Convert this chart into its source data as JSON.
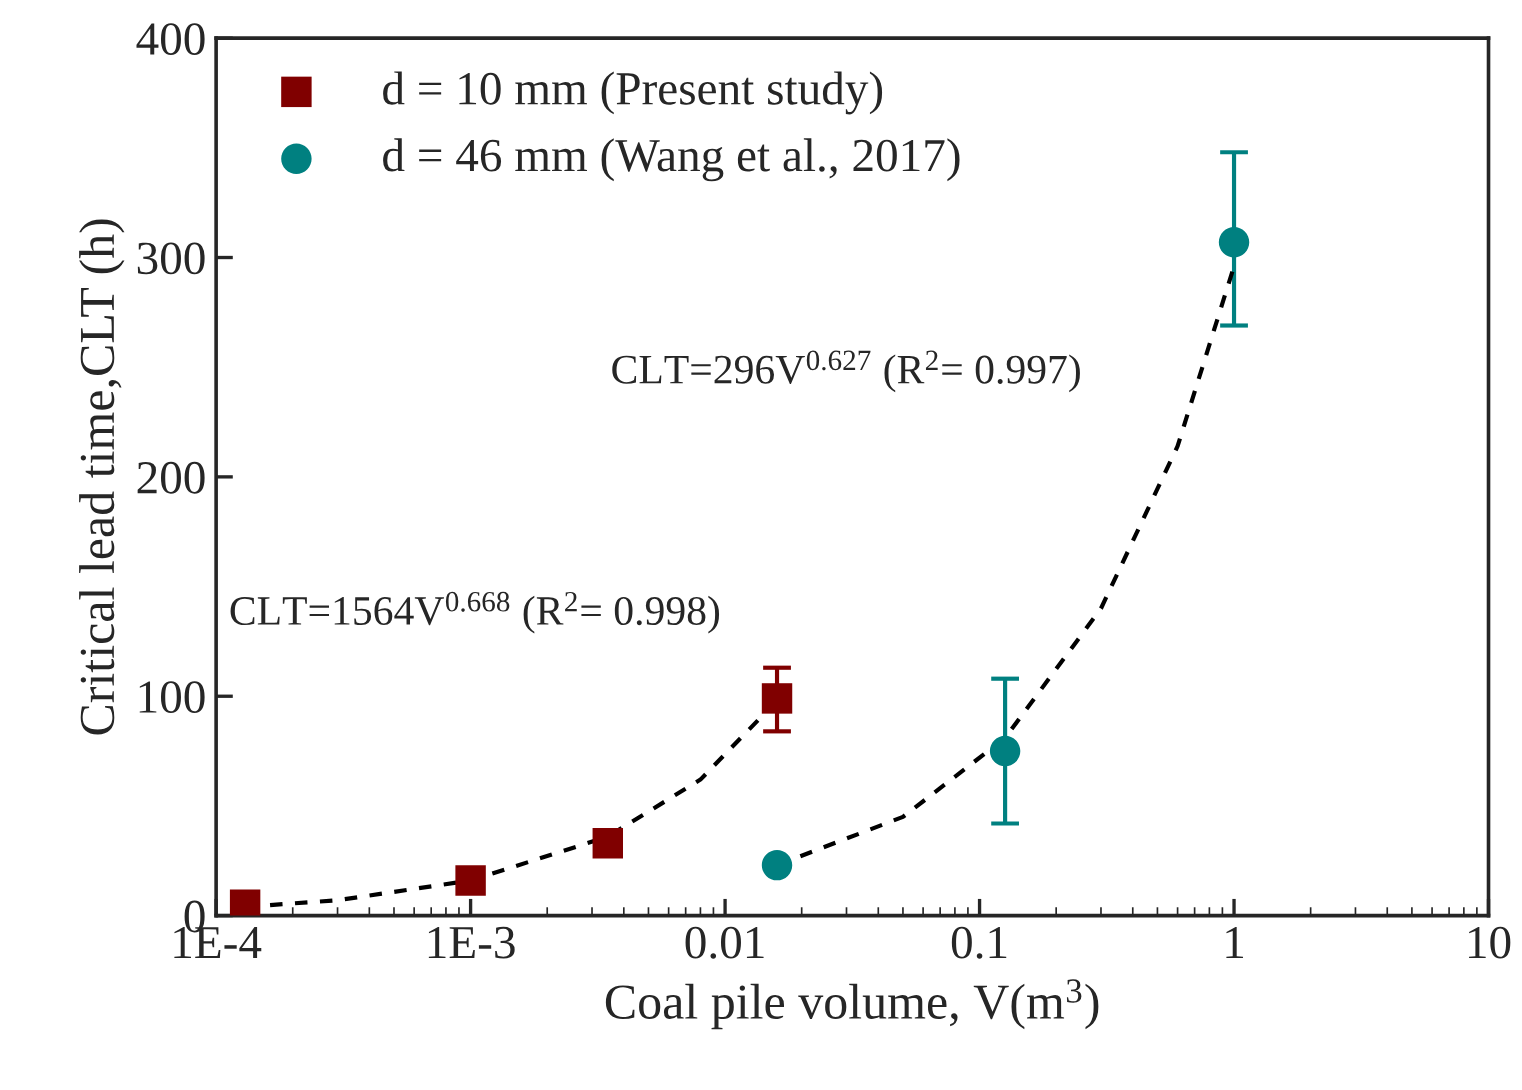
{
  "chart_data": {
    "type": "scatter",
    "xlabel": "Coal pile volume, V(m$^{3}$)",
    "ylabel": "Critical lead time,CLT (h)",
    "log": "x",
    "xlim": [
      0.0001,
      10
    ],
    "xticks": [
      {
        "value": 0.0001,
        "label": "1E-4"
      },
      {
        "value": 0.001,
        "label": "1E-3"
      },
      0.01,
      0.1,
      1,
      10
    ],
    "ylim": [
      0,
      400
    ],
    "yticks": [
      0,
      100,
      200,
      300,
      400
    ],
    "grid": false,
    "legend": "top left",
    "series": [
      {
        "name": "d = 10 mm (Present study)",
        "marker": "square",
        "color": "#800000",
        "x": [
          0.00013,
          0.001,
          0.00346,
          0.016
        ],
        "values": [
          5,
          16,
          33,
          99
        ],
        "errors": [
          null,
          null,
          null,
          [
            84,
            113
          ]
        ]
      },
      {
        "name": "d = 46 mm (Wang et al., 2017)",
        "marker": "circle",
        "color": "#008080",
        "x": [
          0.016,
          0.126,
          1
        ],
        "values": [
          23,
          75,
          307
        ],
        "errors": [
          null,
          [
            42,
            108
          ],
          [
            269,
            348
          ]
        ]
      },
      {
        "type": "line",
        "line_style": "dashed",
        "color": "#000000",
        "x": [
          0.00013,
          0.0003,
          0.001,
          0.00346,
          0.008,
          0.016
        ],
        "values": [
          4,
          7,
          16,
          36,
          62,
          98
        ]
      },
      {
        "type": "line",
        "line_style": "dashed",
        "color": "#000000",
        "x": [
          0.016,
          0.05,
          0.126,
          0.3,
          0.6,
          1
        ],
        "values": [
          23,
          45,
          81,
          140,
          214,
          296
        ]
      }
    ],
    "annotations": [
      "CLT=296V$^{0.627}$ (R$^{2}$= 0.997)",
      "CLT=1564V$^{0.668}$ (R$^{2}$= 0.998)"
    ]
  }
}
